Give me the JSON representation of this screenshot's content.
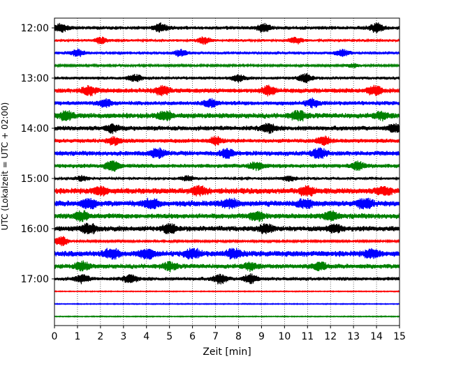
{
  "chart_data": {
    "type": "line",
    "kind": "seismogram helicorder",
    "xlabel": "Zeit  [min]",
    "ylabel": "UTC (Lokalzeit = UTC + 02:00)",
    "xlim": [
      0,
      15
    ],
    "x_ticks": [
      "0",
      "1",
      "2",
      "3",
      "4",
      "5",
      "6",
      "7",
      "8",
      "9",
      "10",
      "11",
      "12",
      "13",
      "14",
      "15"
    ],
    "y_ticks": [
      "12:00",
      "13:00",
      "14:00",
      "15:00",
      "16:00",
      "17:00"
    ],
    "grid": "x dotted",
    "trace_colors": [
      "#000000",
      "#ff0000",
      "#0000ff",
      "#008000"
    ],
    "traces": [
      {
        "start": "12:00",
        "amplitude": 0.35,
        "bursts": [
          [
            0.3,
            0.6
          ],
          [
            4.6,
            0.6
          ],
          [
            9.1,
            0.6
          ],
          [
            14.0,
            0.7
          ]
        ]
      },
      {
        "start": "12:15",
        "amplitude": 0.25,
        "bursts": [
          [
            2.0,
            0.5
          ],
          [
            6.5,
            0.5
          ],
          [
            10.5,
            0.5
          ]
        ]
      },
      {
        "start": "12:30",
        "amplitude": 0.3,
        "bursts": [
          [
            1.0,
            0.5
          ],
          [
            5.5,
            0.5
          ],
          [
            12.5,
            0.5
          ]
        ]
      },
      {
        "start": "12:45",
        "amplitude": 0.2,
        "bursts": [
          [
            13.0,
            0.3
          ]
        ]
      },
      {
        "start": "13:00",
        "amplitude": 0.3,
        "bursts": [
          [
            3.5,
            0.5
          ],
          [
            8.0,
            0.5
          ],
          [
            10.9,
            0.7
          ]
        ]
      },
      {
        "start": "13:15",
        "amplitude": 0.45,
        "bursts": [
          [
            1.5,
            0.8
          ],
          [
            4.7,
            0.8
          ],
          [
            9.3,
            0.7
          ],
          [
            13.9,
            0.8
          ]
        ]
      },
      {
        "start": "13:30",
        "amplitude": 0.4,
        "bursts": [
          [
            2.2,
            0.6
          ],
          [
            6.8,
            0.6
          ],
          [
            11.2,
            0.6
          ]
        ]
      },
      {
        "start": "13:45",
        "amplitude": 0.5,
        "bursts": [
          [
            0.5,
            0.7
          ],
          [
            4.8,
            0.9
          ],
          [
            10.6,
            0.8
          ],
          [
            14.2,
            0.6
          ]
        ]
      },
      {
        "start": "14:00",
        "amplitude": 0.45,
        "bursts": [
          [
            2.5,
            0.6
          ],
          [
            9.3,
            0.7
          ],
          [
            14.8,
            0.6
          ]
        ]
      },
      {
        "start": "14:15",
        "amplitude": 0.4,
        "bursts": [
          [
            2.6,
            0.6
          ],
          [
            7.0,
            0.6
          ],
          [
            11.7,
            0.7
          ]
        ]
      },
      {
        "start": "14:30",
        "amplitude": 0.45,
        "bursts": [
          [
            4.5,
            0.8
          ],
          [
            7.5,
            0.7
          ],
          [
            11.5,
            0.9
          ]
        ]
      },
      {
        "start": "14:45",
        "amplitude": 0.4,
        "bursts": [
          [
            2.5,
            0.9
          ],
          [
            8.8,
            0.6
          ],
          [
            13.2,
            0.6
          ]
        ]
      },
      {
        "start": "15:00",
        "amplitude": 0.25,
        "bursts": [
          [
            1.2,
            0.4
          ],
          [
            5.8,
            0.4
          ],
          [
            10.2,
            0.4
          ]
        ]
      },
      {
        "start": "15:15",
        "amplitude": 0.55,
        "bursts": [
          [
            2.0,
            0.8
          ],
          [
            6.3,
            0.9
          ],
          [
            11.0,
            0.9
          ],
          [
            14.3,
            0.8
          ]
        ]
      },
      {
        "start": "15:30",
        "amplitude": 0.55,
        "bursts": [
          [
            1.5,
            0.9
          ],
          [
            4.2,
            0.9
          ],
          [
            7.6,
            1.0
          ],
          [
            10.9,
            0.9
          ],
          [
            13.5,
            1.0
          ]
        ]
      },
      {
        "start": "15:45",
        "amplitude": 0.5,
        "bursts": [
          [
            1.2,
            0.8
          ],
          [
            8.8,
            0.9
          ],
          [
            12.0,
            0.7
          ]
        ]
      },
      {
        "start": "16:00",
        "amplitude": 0.5,
        "bursts": [
          [
            1.5,
            0.9
          ],
          [
            5.0,
            0.8
          ],
          [
            9.2,
            0.7
          ],
          [
            12.2,
            0.6
          ]
        ]
      },
      {
        "start": "16:15",
        "amplitude": 0.2,
        "bursts": [
          [
            0.3,
            0.8
          ]
        ]
      },
      {
        "start": "16:30",
        "amplitude": 0.55,
        "bursts": [
          [
            2.5,
            0.9
          ],
          [
            4.0,
            1.0
          ],
          [
            6.0,
            0.9
          ],
          [
            7.8,
            0.8
          ],
          [
            13.8,
            0.8
          ]
        ]
      },
      {
        "start": "16:45",
        "amplitude": 0.45,
        "bursts": [
          [
            1.2,
            0.7
          ],
          [
            5.0,
            0.6
          ],
          [
            8.5,
            0.6
          ],
          [
            11.5,
            0.7
          ]
        ]
      },
      {
        "start": "17:00",
        "amplitude": 0.35,
        "bursts": [
          [
            1.2,
            0.6
          ],
          [
            3.3,
            0.6
          ],
          [
            7.2,
            0.8
          ],
          [
            8.5,
            0.7
          ]
        ]
      },
      {
        "start": "17:15",
        "amplitude": 0.08,
        "bursts": []
      },
      {
        "start": "17:30",
        "amplitude": 0.08,
        "bursts": []
      },
      {
        "start": "17:45",
        "amplitude": 0.08,
        "bursts": []
      }
    ]
  }
}
